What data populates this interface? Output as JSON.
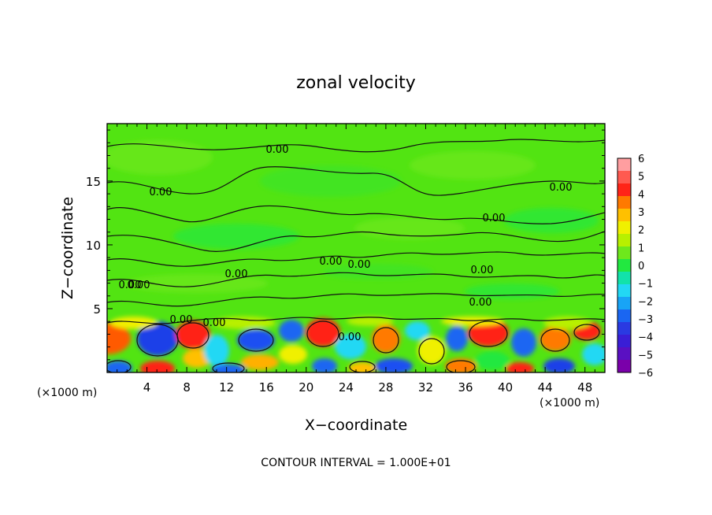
{
  "chart_data": {
    "type": "heatmap",
    "title": "zonal velocity",
    "xlabel": "X−coordinate",
    "ylabel": "Z−coordinate",
    "x_unit": "(×1000 m)",
    "x_unit_right": "(×1000 m)",
    "xlim": [
      0,
      50
    ],
    "ylim": [
      0,
      19.5
    ],
    "x_ticks": [
      "4",
      "8",
      "12",
      "16",
      "20",
      "24",
      "28",
      "32",
      "36",
      "40",
      "44",
      "48"
    ],
    "y_ticks": [
      "5",
      "10",
      "15"
    ],
    "colorbar": {
      "labels": [
        "6",
        "5",
        "4",
        "3",
        "2",
        "1",
        "0",
        "−1",
        "−2",
        "−3",
        "−4",
        "−5",
        "−6"
      ],
      "colors": [
        "#ff9ea0",
        "#ff5a50",
        "#ff2418",
        "#ff7a00",
        "#ffc000",
        "#f0f000",
        "#b8f000",
        "#6ee81c",
        "#22e840",
        "#12e2aa",
        "#22d8f4",
        "#18a4f6",
        "#1a66f2",
        "#2a3ae2",
        "#3a1ed6",
        "#5a10c2",
        "#7a00aa"
      ]
    },
    "contour_labels": [
      "0.00",
      "0.00",
      "0.00",
      "0.00",
      "0.00",
      "0.00",
      "0.00",
      "0.00",
      "0.00",
      "0.00",
      "0.00",
      "0.00",
      "0.00",
      "0.00"
    ],
    "grid": false,
    "legend": "right"
  },
  "footer": {
    "contour_interval": "CONTOUR INTERVAL = 1.000E+01"
  }
}
